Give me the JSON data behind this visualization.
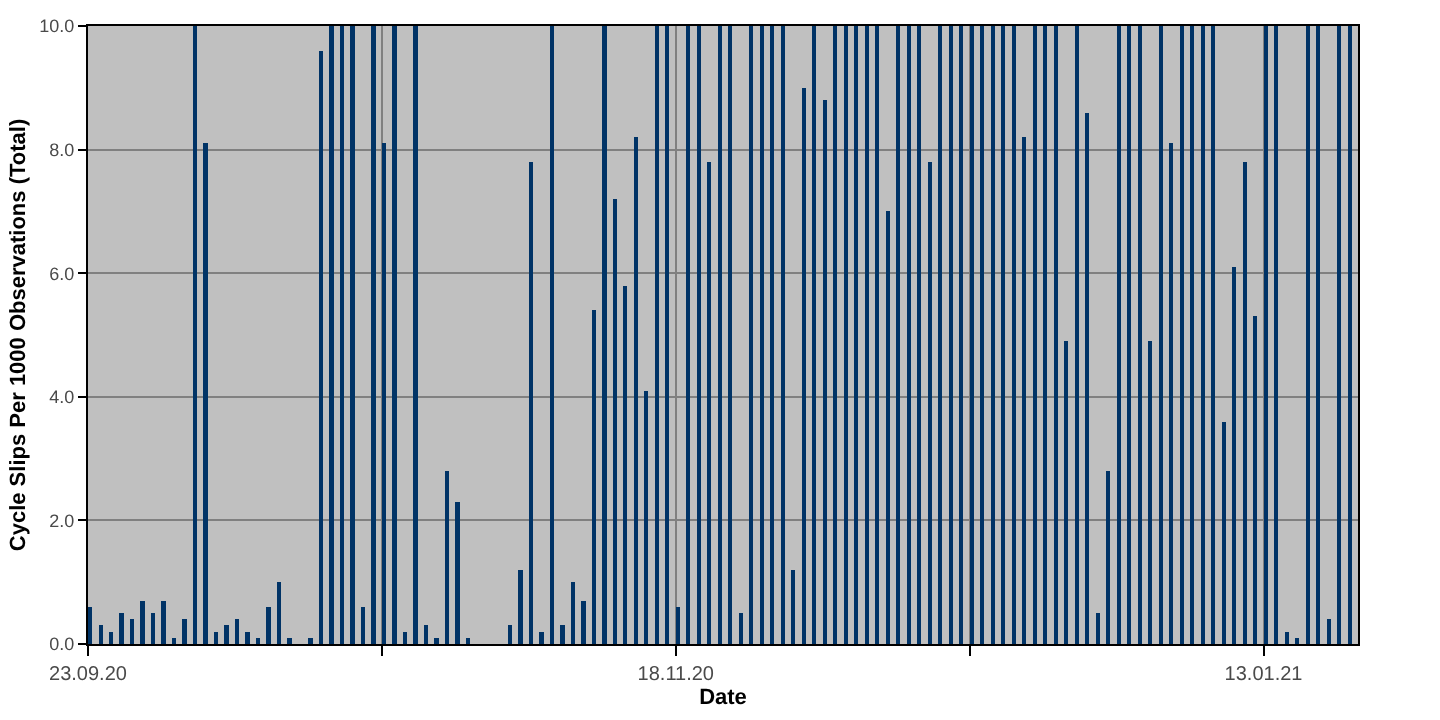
{
  "chart_data": {
    "type": "bar",
    "xlabel": "Date",
    "ylabel": "Cycle Slips Per 1000 Observations (Total)",
    "color": "#003366",
    "grid": true,
    "x": [
      "2020-09-23",
      "2020-09-24",
      "2020-09-25",
      "2020-09-26",
      "2020-09-27",
      "2020-09-28",
      "2020-09-29",
      "2020-09-30",
      "2020-10-01",
      "2020-10-02",
      "2020-10-03",
      "2020-10-04",
      "2020-10-05",
      "2020-10-06",
      "2020-10-07",
      "2020-10-08",
      "2020-10-09",
      "2020-10-10",
      "2020-10-11",
      "2020-10-12",
      "2020-10-13",
      "2020-10-14",
      "2020-10-15",
      "2020-10-16",
      "2020-10-17",
      "2020-10-18",
      "2020-10-19",
      "2020-10-20",
      "2020-10-21",
      "2020-10-22",
      "2020-10-23",
      "2020-10-24",
      "2020-10-25",
      "2020-10-26",
      "2020-10-27",
      "2020-10-28",
      "2020-10-29",
      "2020-10-30",
      "2020-10-31",
      "2020-11-01",
      "2020-11-02",
      "2020-11-03",
      "2020-11-04",
      "2020-11-05",
      "2020-11-06",
      "2020-11-07",
      "2020-11-08",
      "2020-11-09",
      "2020-11-10",
      "2020-11-11",
      "2020-11-12",
      "2020-11-13",
      "2020-11-14",
      "2020-11-15",
      "2020-11-16",
      "2020-11-17",
      "2020-11-18",
      "2020-11-19",
      "2020-11-20",
      "2020-11-21",
      "2020-11-22",
      "2020-11-23",
      "2020-11-24",
      "2020-11-25",
      "2020-11-26",
      "2020-11-27",
      "2020-11-28",
      "2020-11-29",
      "2020-11-30",
      "2020-12-01",
      "2020-12-02",
      "2020-12-03",
      "2020-12-04",
      "2020-12-05",
      "2020-12-06",
      "2020-12-07",
      "2020-12-08",
      "2020-12-09",
      "2020-12-10",
      "2020-12-11",
      "2020-12-12",
      "2020-12-13",
      "2020-12-14",
      "2020-12-15",
      "2020-12-16",
      "2020-12-17",
      "2020-12-18",
      "2020-12-19",
      "2020-12-20",
      "2020-12-21",
      "2020-12-22",
      "2020-12-23",
      "2020-12-24",
      "2020-12-25",
      "2020-12-26",
      "2020-12-27",
      "2020-12-28",
      "2020-12-29",
      "2020-12-30",
      "2020-12-31",
      "2021-01-01",
      "2021-01-02",
      "2021-01-03",
      "2021-01-04",
      "2021-01-05",
      "2021-01-06",
      "2021-01-07",
      "2021-01-08",
      "2021-01-09",
      "2021-01-10",
      "2021-01-11",
      "2021-01-12",
      "2021-01-13",
      "2021-01-14",
      "2021-01-15",
      "2021-01-16",
      "2021-01-17",
      "2021-01-18",
      "2021-01-19",
      "2021-01-20",
      "2021-01-21"
    ],
    "values": [
      0.6,
      0.3,
      0.2,
      0.5,
      0.4,
      0.7,
      0.5,
      0.7,
      0.1,
      0.4,
      10,
      8.1,
      0.2,
      0.3,
      0.4,
      0.2,
      0.1,
      0.6,
      1.0,
      0.1,
      0,
      0.1,
      9.6,
      10,
      10,
      10,
      0.6,
      10,
      8.1,
      10,
      0.2,
      10,
      0.3,
      0.1,
      2.8,
      2.3,
      0.1,
      0,
      0,
      0,
      0.3,
      1.2,
      7.8,
      0.2,
      10,
      0.3,
      1.0,
      0.7,
      5.4,
      10,
      7.2,
      5.8,
      8.2,
      4.1,
      10,
      10,
      0.6,
      10,
      10,
      7.8,
      10,
      10,
      0.5,
      10,
      10,
      10,
      10,
      1.2,
      9.0,
      10,
      8.8,
      10,
      10,
      10,
      10,
      10,
      7.0,
      10,
      10,
      10,
      7.8,
      10,
      10,
      10,
      10,
      10,
      10,
      10,
      10,
      8.2,
      10,
      10,
      10,
      4.9,
      10,
      8.6,
      0.5,
      2.8,
      10,
      10,
      10,
      4.9,
      10,
      8.1,
      10,
      10,
      10,
      10,
      3.6,
      6.1,
      7.8,
      5.3,
      10,
      10,
      0.2,
      0.1,
      10,
      10,
      0.4,
      10,
      10
    ],
    "xlim": [
      "2020-09-23",
      "2021-01-22"
    ],
    "xticks": [
      {
        "value": "2020-09-23",
        "label": "23.09.20"
      },
      {
        "value": "2020-10-21",
        "label": null
      },
      {
        "value": "2020-11-18",
        "label": "18.11.20"
      },
      {
        "value": "2020-12-16",
        "label": null
      },
      {
        "value": "2021-01-13",
        "label": "13.01.21"
      }
    ],
    "ylim": [
      0,
      10
    ],
    "yticks": [
      {
        "value": 0,
        "label": "0.0"
      },
      {
        "value": 2,
        "label": "2.0"
      },
      {
        "value": 4,
        "label": "4.0"
      },
      {
        "value": 6,
        "label": "6.0"
      },
      {
        "value": 8,
        "label": "8.0"
      },
      {
        "value": 10,
        "label": "10.0"
      }
    ]
  }
}
